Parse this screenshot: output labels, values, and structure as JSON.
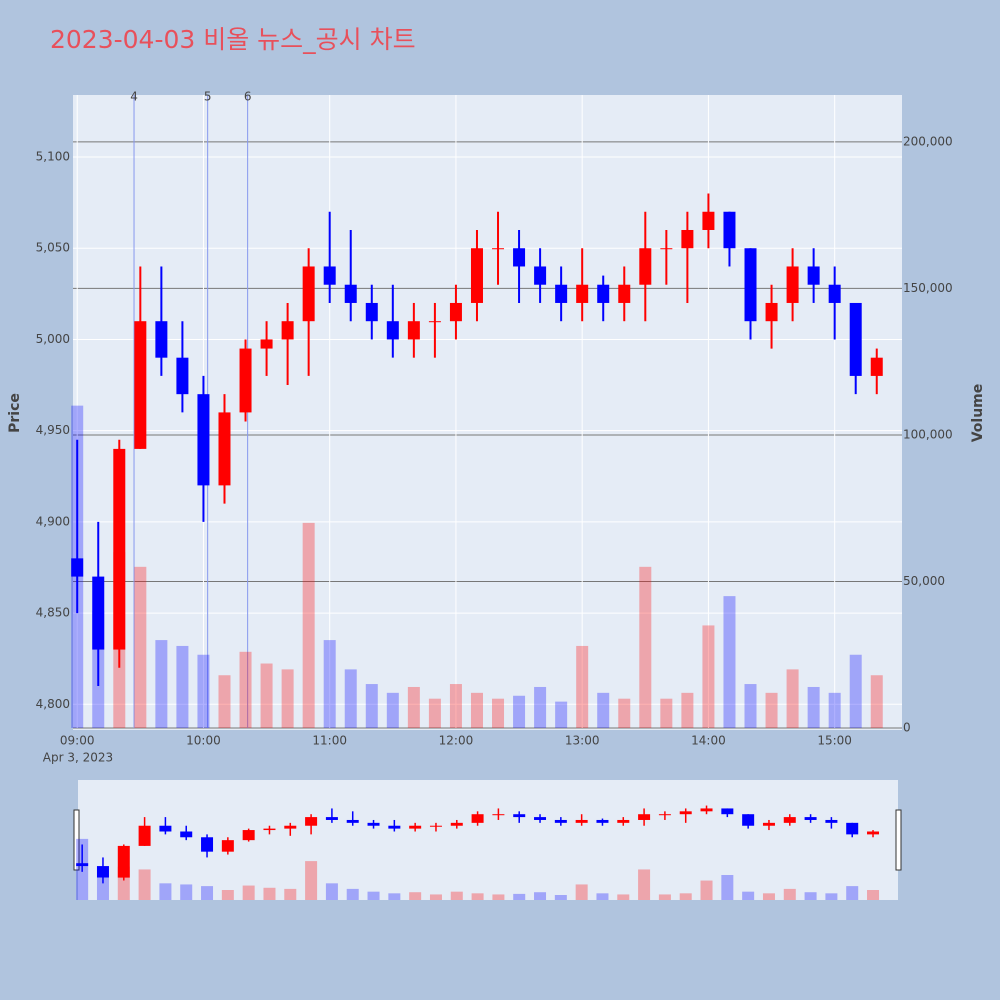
{
  "chart_data": {
    "type": "candlestick",
    "title": "2023-04-03 비올 뉴스_공시 차트",
    "x": [
      "09:00",
      "09:10",
      "09:20",
      "09:30",
      "09:40",
      "09:50",
      "10:00",
      "10:10",
      "10:20",
      "10:30",
      "10:40",
      "10:50",
      "11:00",
      "11:10",
      "11:20",
      "11:30",
      "11:40",
      "11:50",
      "12:00",
      "12:10",
      "12:20",
      "12:30",
      "12:40",
      "12:50",
      "13:00",
      "13:10",
      "13:20",
      "13:30",
      "13:40",
      "13:50",
      "14:00",
      "14:10",
      "14:20",
      "14:30",
      "14:40",
      "14:50",
      "15:00",
      "15:10",
      "15:20"
    ],
    "open": [
      4880,
      4870,
      4830,
      4940,
      5010,
      4990,
      4970,
      4920,
      4960,
      4995,
      5000,
      5010,
      5040,
      5030,
      5020,
      5010,
      5000,
      5010,
      5010,
      5020,
      5050,
      5050,
      5040,
      5030,
      5020,
      5030,
      5020,
      5030,
      5050,
      5050,
      5060,
      5070,
      5050,
      5010,
      5020,
      5040,
      5030,
      5020,
      4980
    ],
    "high": [
      4945,
      4900,
      4945,
      5040,
      5040,
      5010,
      4980,
      4970,
      5000,
      5010,
      5020,
      5050,
      5070,
      5060,
      5030,
      5030,
      5020,
      5020,
      5030,
      5060,
      5070,
      5060,
      5050,
      5040,
      5050,
      5035,
      5040,
      5070,
      5060,
      5070,
      5080,
      5070,
      5050,
      5030,
      5050,
      5050,
      5040,
      5020,
      4995
    ],
    "low": [
      4850,
      4810,
      4820,
      4940,
      4980,
      4960,
      4900,
      4910,
      4955,
      4980,
      4975,
      4980,
      5020,
      5010,
      5000,
      4990,
      4990,
      4990,
      5000,
      5010,
      5030,
      5020,
      5020,
      5010,
      5010,
      5010,
      5010,
      5010,
      5030,
      5020,
      5050,
      5040,
      5000,
      4995,
      5010,
      5020,
      5000,
      4970,
      4970
    ],
    "close": [
      4870,
      4830,
      4940,
      5010,
      4990,
      4970,
      4920,
      4960,
      4995,
      5000,
      5010,
      5040,
      5030,
      5020,
      5010,
      5000,
      5010,
      5010,
      5020,
      5050,
      5050,
      5040,
      5030,
      5020,
      5030,
      5020,
      5030,
      5050,
      5050,
      5060,
      5070,
      5050,
      5010,
      5020,
      5040,
      5030,
      5020,
      4980,
      4990
    ],
    "volume": [
      110000,
      40000,
      60000,
      55000,
      30000,
      28000,
      25000,
      18000,
      26000,
      22000,
      20000,
      70000,
      30000,
      20000,
      15000,
      12000,
      14000,
      10000,
      15000,
      12000,
      10000,
      11000,
      14000,
      9000,
      28000,
      12000,
      10000,
      55000,
      10000,
      12000,
      35000,
      45000,
      15000,
      12000,
      20000,
      14000,
      12000,
      25000,
      18000
    ],
    "colors": {
      "increasing": "#ff0000",
      "decreasing": "#0000ff"
    },
    "xlim": [
      "08:58",
      "15:32"
    ],
    "xticks": [
      "09:00",
      "10:00",
      "11:00",
      "12:00",
      "13:00",
      "14:00",
      "15:00"
    ],
    "date_label": "Apr 3, 2023",
    "ylim": [
      4787,
      5134
    ],
    "yticks": [
      {
        "value": 4800,
        "label": "4,800"
      },
      {
        "value": 4850,
        "label": "4,850"
      },
      {
        "value": 4900,
        "label": "4,900"
      },
      {
        "value": 4950,
        "label": "4,950"
      },
      {
        "value": 5000,
        "label": "5,000"
      },
      {
        "value": 5050,
        "label": "5,050"
      },
      {
        "value": 5100,
        "label": "5,100"
      }
    ],
    "y2lim": [
      0,
      216000
    ],
    "y2ticks": [
      0,
      {
        "value": 50000,
        "label": "50,000"
      },
      {
        "value": 100000,
        "label": "100,000"
      },
      {
        "value": 150000,
        "label": "150,000"
      },
      {
        "value": 200000,
        "label": "200,000"
      }
    ],
    "ylabel": "Price",
    "y2label": "Volume",
    "annotations": [
      {
        "x": "09:27",
        "label": "4"
      },
      {
        "x": "10:02",
        "label": "5"
      },
      {
        "x": "10:21",
        "label": "6"
      }
    ]
  }
}
